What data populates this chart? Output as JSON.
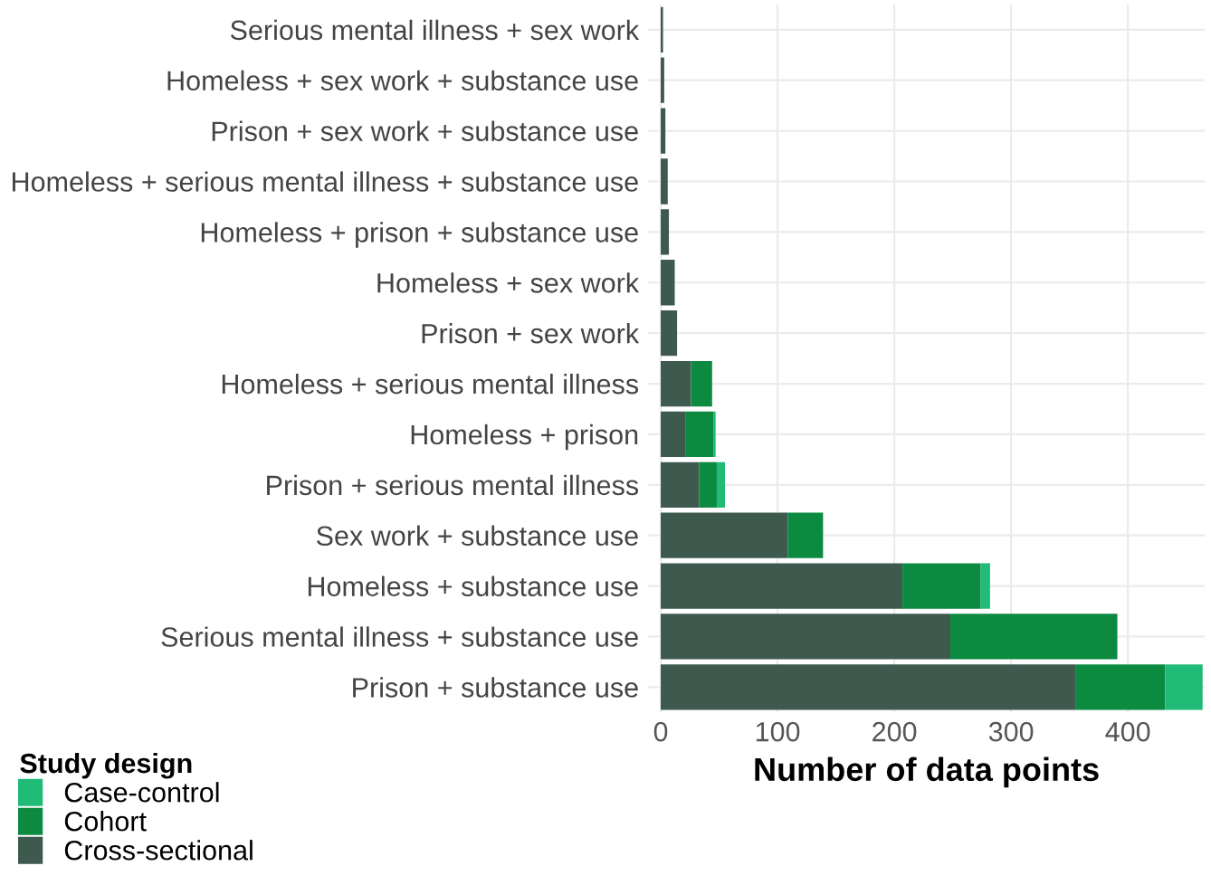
{
  "chart_data": {
    "type": "bar",
    "orientation": "horizontal",
    "stacked": true,
    "xlabel": "Number of data points",
    "legend_title": "Study design",
    "legend": "bottom left",
    "grid": true,
    "categories": [
      "Serious mental illness + sex work",
      "Homeless + sex work + substance use",
      "Prison + sex work + substance use",
      "Homeless + serious mental illness + substance use",
      "Homeless + prison + substance use",
      "Homeless + sex work",
      "Prison + sex work",
      "Homeless + serious mental illness",
      "Homeless + prison",
      "Prison + serious mental illness",
      "Sex work + substance use",
      "Homeless + substance use",
      "Serious mental illness + substance use",
      "Prison + substance use"
    ],
    "xlim": [
      -11,
      466
    ],
    "xticks": [
      0,
      100,
      200,
      300,
      400
    ],
    "series": [
      {
        "name": "Cross-sectional",
        "color": "#3e5a4f",
        "values": [
          2,
          3,
          4,
          6,
          7,
          12,
          14,
          26,
          21,
          33,
          109,
          207,
          248,
          355
        ]
      },
      {
        "name": "Cohort",
        "color": "#0b8a40",
        "values": [
          0,
          0,
          0,
          0,
          0,
          0,
          0,
          18,
          24,
          15,
          30,
          67,
          143,
          77
        ]
      },
      {
        "name": "Case-control",
        "color": "#20bb77",
        "values": [
          0,
          0,
          0,
          0,
          0,
          0,
          0,
          0,
          2,
          7,
          0,
          8,
          0,
          32
        ]
      }
    ]
  }
}
